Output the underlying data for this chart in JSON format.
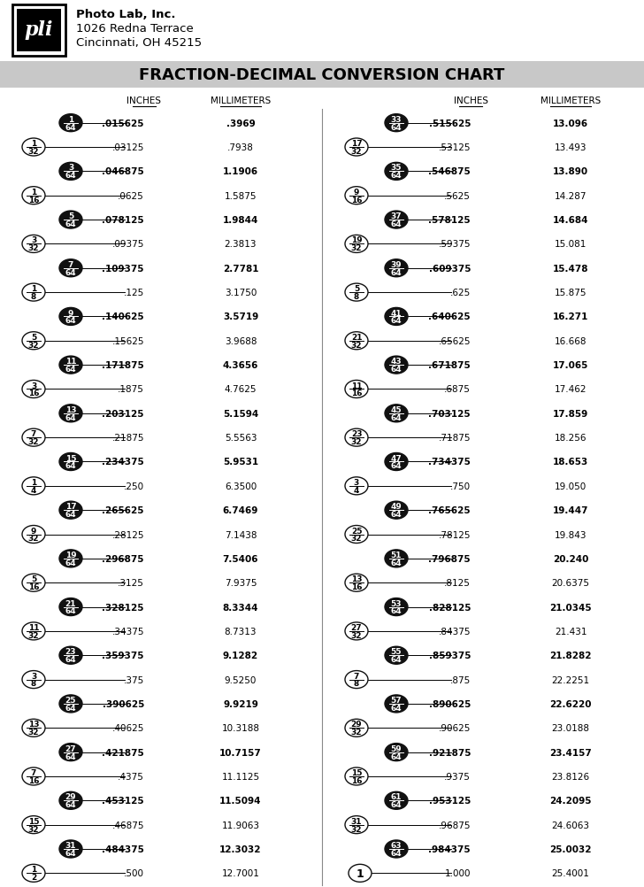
{
  "title": "FRACTION-DECIMAL CONVERSION CHART",
  "header_line1": "Photo Lab, Inc.",
  "header_line2": "1026 Redna Terrace",
  "header_line3": "Cincinnati, OH 45215",
  "rows": [
    {
      "frac": "1/64",
      "oval": true,
      "inches": ".015625",
      "mm": ".3969",
      "bold": true
    },
    {
      "frac": "1/32",
      "oval": false,
      "inches": ".03125",
      "mm": ".7938",
      "bold": false
    },
    {
      "frac": "3/64",
      "oval": true,
      "inches": ".046875",
      "mm": "1.1906",
      "bold": true
    },
    {
      "frac": "1/16",
      "oval": false,
      "inches": ".0625",
      "mm": "1.5875",
      "bold": false
    },
    {
      "frac": "5/64",
      "oval": true,
      "inches": ".078125",
      "mm": "1.9844",
      "bold": true
    },
    {
      "frac": "3/32",
      "oval": false,
      "inches": ".09375",
      "mm": "2.3813",
      "bold": false
    },
    {
      "frac": "7/64",
      "oval": true,
      "inches": ".109375",
      "mm": "2.7781",
      "bold": true
    },
    {
      "frac": "1/8",
      "oval": false,
      "inches": ".125",
      "mm": "3.1750",
      "bold": false
    },
    {
      "frac": "9/64",
      "oval": true,
      "inches": ".140625",
      "mm": "3.5719",
      "bold": true
    },
    {
      "frac": "5/32",
      "oval": false,
      "inches": ".15625",
      "mm": "3.9688",
      "bold": false
    },
    {
      "frac": "11/64",
      "oval": true,
      "inches": ".171875",
      "mm": "4.3656",
      "bold": true
    },
    {
      "frac": "3/16",
      "oval": false,
      "inches": ".1875",
      "mm": "4.7625",
      "bold": false
    },
    {
      "frac": "13/64",
      "oval": true,
      "inches": ".203125",
      "mm": "5.1594",
      "bold": true
    },
    {
      "frac": "7/32",
      "oval": false,
      "inches": ".21875",
      "mm": "5.5563",
      "bold": false
    },
    {
      "frac": "15/64",
      "oval": true,
      "inches": ".234375",
      "mm": "5.9531",
      "bold": true
    },
    {
      "frac": "1/4",
      "oval": false,
      "inches": ".250",
      "mm": "6.3500",
      "bold": false
    },
    {
      "frac": "17/64",
      "oval": true,
      "inches": ".265625",
      "mm": "6.7469",
      "bold": true
    },
    {
      "frac": "9/32",
      "oval": false,
      "inches": ".28125",
      "mm": "7.1438",
      "bold": false
    },
    {
      "frac": "19/64",
      "oval": true,
      "inches": ".296875",
      "mm": "7.5406",
      "bold": true
    },
    {
      "frac": "5/16",
      "oval": false,
      "inches": ".3125",
      "mm": "7.9375",
      "bold": false
    },
    {
      "frac": "21/64",
      "oval": true,
      "inches": ".328125",
      "mm": "8.3344",
      "bold": true
    },
    {
      "frac": "11/32",
      "oval": false,
      "inches": ".34375",
      "mm": "8.7313",
      "bold": false
    },
    {
      "frac": "23/64",
      "oval": true,
      "inches": ".359375",
      "mm": "9.1282",
      "bold": true
    },
    {
      "frac": "3/8",
      "oval": false,
      "inches": ".375",
      "mm": "9.5250",
      "bold": false
    },
    {
      "frac": "25/64",
      "oval": true,
      "inches": ".390625",
      "mm": "9.9219",
      "bold": true
    },
    {
      "frac": "13/32",
      "oval": false,
      "inches": ".40625",
      "mm": "10.3188",
      "bold": false
    },
    {
      "frac": "27/64",
      "oval": true,
      "inches": ".421875",
      "mm": "10.7157",
      "bold": true
    },
    {
      "frac": "7/16",
      "oval": false,
      "inches": ".4375",
      "mm": "11.1125",
      "bold": false
    },
    {
      "frac": "29/64",
      "oval": true,
      "inches": ".453125",
      "mm": "11.5094",
      "bold": true
    },
    {
      "frac": "15/32",
      "oval": false,
      "inches": ".46875",
      "mm": "11.9063",
      "bold": false
    },
    {
      "frac": "31/64",
      "oval": true,
      "inches": ".484375",
      "mm": "12.3032",
      "bold": true
    },
    {
      "frac": "1/2",
      "oval": false,
      "inches": ".500",
      "mm": "12.7001",
      "bold": false
    }
  ],
  "rows2": [
    {
      "frac": "33/64",
      "oval": true,
      "inches": ".515625",
      "mm": "13.096",
      "bold": true
    },
    {
      "frac": "17/32",
      "oval": false,
      "inches": ".53125",
      "mm": "13.493",
      "bold": false
    },
    {
      "frac": "35/64",
      "oval": true,
      "inches": ".546875",
      "mm": "13.890",
      "bold": true
    },
    {
      "frac": "9/16",
      "oval": false,
      "inches": ".5625",
      "mm": "14.287",
      "bold": false
    },
    {
      "frac": "37/64",
      "oval": true,
      "inches": ".578125",
      "mm": "14.684",
      "bold": true
    },
    {
      "frac": "19/32",
      "oval": false,
      "inches": ".59375",
      "mm": "15.081",
      "bold": false
    },
    {
      "frac": "39/64",
      "oval": true,
      "inches": ".609375",
      "mm": "15.478",
      "bold": true
    },
    {
      "frac": "5/8",
      "oval": false,
      "inches": ".625",
      "mm": "15.875",
      "bold": false
    },
    {
      "frac": "41/64",
      "oval": true,
      "inches": ".640625",
      "mm": "16.271",
      "bold": true
    },
    {
      "frac": "21/32",
      "oval": false,
      "inches": ".65625",
      "mm": "16.668",
      "bold": false
    },
    {
      "frac": "43/64",
      "oval": true,
      "inches": ".671875",
      "mm": "17.065",
      "bold": true
    },
    {
      "frac": "11/16",
      "oval": false,
      "inches": ".6875",
      "mm": "17.462",
      "bold": false
    },
    {
      "frac": "45/64",
      "oval": true,
      "inches": ".703125",
      "mm": "17.859",
      "bold": true
    },
    {
      "frac": "23/32",
      "oval": false,
      "inches": ".71875",
      "mm": "18.256",
      "bold": false
    },
    {
      "frac": "47/64",
      "oval": true,
      "inches": ".734375",
      "mm": "18.653",
      "bold": true
    },
    {
      "frac": "3/4",
      "oval": false,
      "inches": ".750",
      "mm": "19.050",
      "bold": false
    },
    {
      "frac": "49/64",
      "oval": true,
      "inches": ".765625",
      "mm": "19.447",
      "bold": true
    },
    {
      "frac": "25/32",
      "oval": false,
      "inches": ".78125",
      "mm": "19.843",
      "bold": false
    },
    {
      "frac": "51/64",
      "oval": true,
      "inches": ".796875",
      "mm": "20.240",
      "bold": true
    },
    {
      "frac": "13/16",
      "oval": false,
      "inches": ".8125",
      "mm": "20.6375",
      "bold": false
    },
    {
      "frac": "53/64",
      "oval": true,
      "inches": ".828125",
      "mm": "21.0345",
      "bold": true
    },
    {
      "frac": "27/32",
      "oval": false,
      "inches": ".84375",
      "mm": "21.431",
      "bold": false
    },
    {
      "frac": "55/64",
      "oval": true,
      "inches": ".859375",
      "mm": "21.8282",
      "bold": true
    },
    {
      "frac": "7/8",
      "oval": false,
      "inches": ".875",
      "mm": "22.2251",
      "bold": false
    },
    {
      "frac": "57/64",
      "oval": true,
      "inches": ".890625",
      "mm": "22.6220",
      "bold": true
    },
    {
      "frac": "29/32",
      "oval": false,
      "inches": ".90625",
      "mm": "23.0188",
      "bold": false
    },
    {
      "frac": "59/64",
      "oval": true,
      "inches": ".921875",
      "mm": "23.4157",
      "bold": true
    },
    {
      "frac": "15/16",
      "oval": false,
      "inches": ".9375",
      "mm": "23.8126",
      "bold": false
    },
    {
      "frac": "61/64",
      "oval": true,
      "inches": ".953125",
      "mm": "24.2095",
      "bold": true
    },
    {
      "frac": "31/32",
      "oval": false,
      "inches": ".96875",
      "mm": "24.6063",
      "bold": false
    },
    {
      "frac": "63/64",
      "oval": true,
      "inches": ".984375",
      "mm": "25.0032",
      "bold": true
    },
    {
      "frac": "1",
      "oval": false,
      "inches": "1.000",
      "mm": "25.4001",
      "bold": false
    }
  ],
  "bg_color": "#ffffff",
  "title_bg": "#c8c8c8",
  "oval_fill": "#111111",
  "oval_text_color": "#ffffff",
  "circle_stroke": "#111111",
  "text_color": "#000000",
  "divider_color": "#888888",
  "logo_outer": "#000000",
  "logo_inner": "#000000"
}
